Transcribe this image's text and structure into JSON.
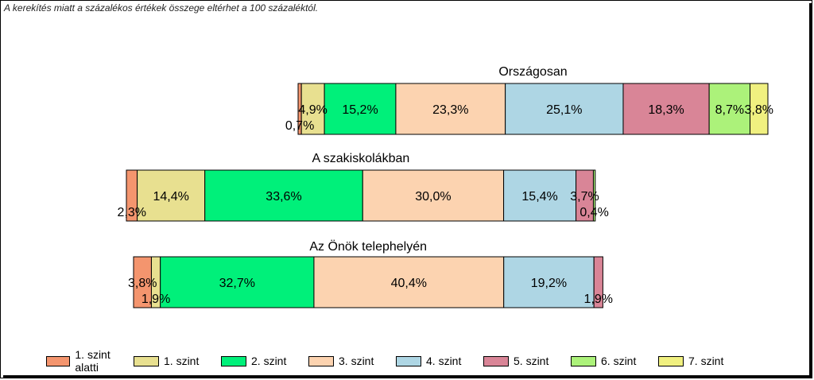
{
  "note": "A kerekítés miatt a  százalékos értékek összege eltérhet a 100 százaléktól.",
  "chart_data": {
    "type": "bar",
    "orientation": "horizontal-stacked-percent",
    "series": [
      {
        "name": "1. szint alatti",
        "color": "#F4956E"
      },
      {
        "name": "1. szint",
        "color": "#E8E090"
      },
      {
        "name": "2. szint",
        "color": "#00F07A"
      },
      {
        "name": "3. szint",
        "color": "#FCD3B0"
      },
      {
        "name": "4. szint",
        "color": "#AED6E4"
      },
      {
        "name": "5. szint",
        "color": "#D98597"
      },
      {
        "name": "6. szint",
        "color": "#ACF27A"
      },
      {
        "name": "7. szint",
        "color": "#F0F080"
      }
    ],
    "groups": [
      {
        "title": "Országosan",
        "values": [
          0.7,
          4.9,
          15.2,
          23.3,
          25.1,
          18.3,
          8.7,
          3.8
        ],
        "labels": [
          "0,7%",
          "4,9%",
          "15,2%",
          "23,3%",
          "25,1%",
          "18,3%",
          "8,7%",
          "3,8%"
        ]
      },
      {
        "title": "A szakiskolákban",
        "values": [
          2.3,
          14.4,
          33.6,
          30.0,
          15.4,
          3.7,
          0.4,
          0
        ],
        "labels": [
          "2,3%",
          "14,4%",
          "33,6%",
          "30,0%",
          "15,4%",
          "3,7%",
          "0,4%",
          ""
        ]
      },
      {
        "title": "Az Önök telephelyén",
        "values": [
          3.8,
          1.9,
          32.7,
          40.4,
          19.2,
          1.9,
          0,
          0
        ],
        "labels": [
          "3,8%",
          "1,9%",
          "32,7%",
          "40,4%",
          "19,2%",
          "1,9%",
          "",
          ""
        ]
      }
    ]
  }
}
